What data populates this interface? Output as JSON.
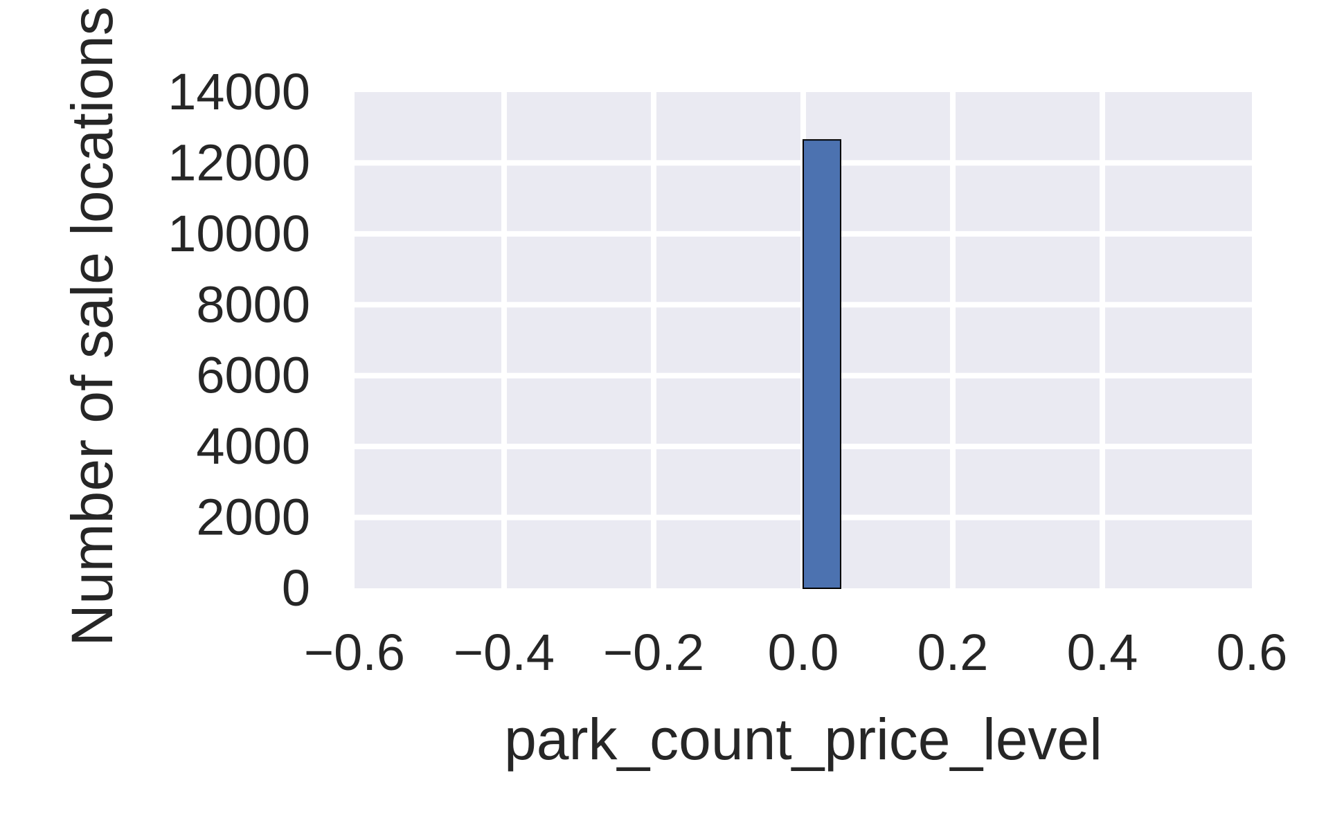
{
  "chart_data": {
    "type": "bar",
    "title": "",
    "xlabel": "park_count_price_level",
    "ylabel": "Number of sale locations",
    "xlim": [
      -0.6,
      0.6
    ],
    "ylim": [
      0,
      14000
    ],
    "x_ticks": [
      -0.6,
      -0.4,
      -0.2,
      0.0,
      0.2,
      0.4,
      0.6
    ],
    "x_tick_labels": [
      "−0.6",
      "−0.4",
      "−0.2",
      "0.0",
      "0.2",
      "0.4",
      "0.6"
    ],
    "y_ticks": [
      0,
      2000,
      4000,
      6000,
      8000,
      10000,
      12000,
      14000
    ],
    "y_tick_labels": [
      "0",
      "2000",
      "4000",
      "6000",
      "8000",
      "10000",
      "12000",
      "14000"
    ],
    "grid": true,
    "background": "#EAEAF2",
    "bar_color": "#4C72B0",
    "bar_edge_color": "#000000",
    "bins": [
      {
        "x0": -0.5,
        "x1": -0.45,
        "count": 0
      },
      {
        "x0": -0.45,
        "x1": -0.4,
        "count": 0
      },
      {
        "x0": -0.4,
        "x1": -0.35,
        "count": 0
      },
      {
        "x0": -0.35,
        "x1": -0.3,
        "count": 0
      },
      {
        "x0": -0.3,
        "x1": -0.25,
        "count": 0
      },
      {
        "x0": -0.25,
        "x1": -0.2,
        "count": 0
      },
      {
        "x0": -0.2,
        "x1": -0.15,
        "count": 0
      },
      {
        "x0": -0.15,
        "x1": -0.1,
        "count": 0
      },
      {
        "x0": -0.1,
        "x1": -0.05,
        "count": 0
      },
      {
        "x0": -0.05,
        "x1": 0.0,
        "count": 0
      },
      {
        "x0": 0.0,
        "x1": 0.05,
        "count": 12650
      },
      {
        "x0": 0.05,
        "x1": 0.1,
        "count": 0
      },
      {
        "x0": 0.1,
        "x1": 0.15,
        "count": 0
      },
      {
        "x0": 0.15,
        "x1": 0.2,
        "count": 0
      },
      {
        "x0": 0.2,
        "x1": 0.25,
        "count": 0
      },
      {
        "x0": 0.25,
        "x1": 0.3,
        "count": 0
      },
      {
        "x0": 0.3,
        "x1": 0.35,
        "count": 0
      },
      {
        "x0": 0.35,
        "x1": 0.4,
        "count": 0
      },
      {
        "x0": 0.4,
        "x1": 0.45,
        "count": 0
      },
      {
        "x0": 0.45,
        "x1": 0.5,
        "count": 0
      }
    ]
  }
}
